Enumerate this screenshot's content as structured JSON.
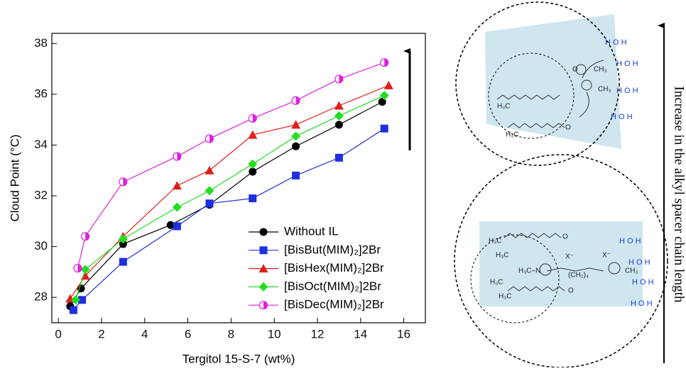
{
  "chart_data": {
    "type": "line",
    "xlabel": "Tergitol 15-S-7 (wt%)",
    "ylabel": "Cloud Point (°C)",
    "xlim": [
      -0.3,
      17
    ],
    "ylim": [
      27,
      38.4
    ],
    "xticks": [
      0,
      2,
      4,
      6,
      8,
      10,
      12,
      14,
      16
    ],
    "yticks": [
      28,
      30,
      32,
      34,
      36,
      38
    ],
    "legend": "lower right",
    "series": [
      {
        "name": "Without IL",
        "color": "#000000",
        "marker": "circle",
        "x": [
          0.55,
          1.05,
          3,
          5.2,
          7,
          9,
          11,
          13,
          15
        ],
        "values": [
          27.65,
          28.35,
          30.1,
          30.85,
          31.65,
          32.95,
          33.95,
          34.8,
          35.7
        ]
      },
      {
        "name": "[BisBut(MIM)₂]2Br",
        "color": "#1f2fe0",
        "marker": "square",
        "x": [
          0.7,
          1.1,
          3,
          5.5,
          7,
          9,
          11,
          13,
          15.1
        ],
        "values": [
          27.5,
          27.9,
          29.4,
          30.8,
          31.7,
          31.9,
          32.8,
          33.5,
          34.65
        ]
      },
      {
        "name": "[BisHex(MIM)₂]2Br",
        "color": "#e0201a",
        "marker": "triangle",
        "x": [
          0.55,
          1.25,
          3,
          5.5,
          7,
          9,
          11,
          13,
          15.3
        ],
        "values": [
          27.95,
          28.85,
          30.4,
          32.4,
          33,
          34.4,
          34.8,
          35.55,
          36.35
        ]
      },
      {
        "name": "[BisOct(MIM)₂]2Br",
        "color": "#22dd22",
        "marker": "diamond",
        "x": [
          0.8,
          1.25,
          3,
          5.5,
          7,
          9,
          11,
          13,
          15.1
        ],
        "values": [
          27.9,
          29.1,
          30.3,
          31.55,
          32.2,
          33.25,
          34.35,
          35.15,
          35.95
        ]
      },
      {
        "name": "[BisDec(MIM)₂]2Br",
        "color": "#e020e0",
        "marker": "half-circle",
        "x": [
          0.9,
          1.25,
          3,
          5.5,
          7,
          9,
          11,
          13,
          15.1
        ],
        "values": [
          29.15,
          30.4,
          32.55,
          33.55,
          34.25,
          35.05,
          35.75,
          36.6,
          37.25
        ]
      }
    ]
  },
  "diagram": {
    "side_label": "Increase in the alkyl spacer chain length",
    "top": {
      "water": [
        "H O H",
        "H O H",
        "H O H",
        "H O H"
      ],
      "alkyl": [
        "H₃C",
        "H₃C",
        "CH₃",
        "CH₃",
        "O",
        "O"
      ]
    },
    "bottom": {
      "water": [
        "H O H",
        "H O H",
        "H O H",
        "H O H"
      ],
      "alkyl": [
        "H₃C",
        "H₃C",
        "H₃C",
        "H₃C",
        "H₃C–N",
        "CH₃",
        "X⁻",
        "X⁻",
        "(CH₂)₄",
        "O",
        "O"
      ]
    }
  }
}
